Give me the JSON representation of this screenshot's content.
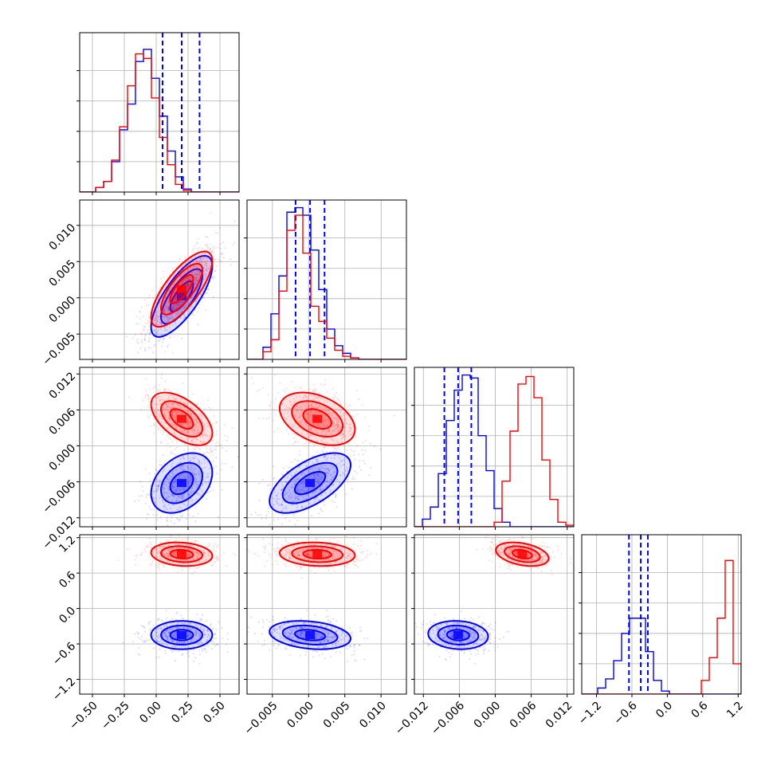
{
  "colors": {
    "blue": "#0000ff",
    "red": "#ff0000"
  },
  "chart_data": {
    "type": "corner",
    "grid": true,
    "legend": "none",
    "parameters": [
      {
        "ticks": [
          -0.5,
          -0.25,
          0.0,
          0.25,
          0.5
        ],
        "tick_labels": [
          "−0.50",
          "−0.25",
          "0.00",
          "0.25",
          "0.50"
        ],
        "range": [
          -0.6,
          0.65
        ]
      },
      {
        "ticks": [
          -0.005,
          0.0,
          0.005,
          0.01
        ],
        "tick_labels": [
          "−0.005",
          "0.000",
          "0.005",
          "0.010"
        ],
        "range": [
          -0.0085,
          0.0135
        ]
      },
      {
        "ticks": [
          -0.012,
          -0.006,
          0.0,
          0.006,
          0.012
        ],
        "tick_labels": [
          "−0.012",
          "−0.006",
          "0.000",
          "0.006",
          "0.012"
        ],
        "range": [
          -0.0135,
          0.0131
        ]
      },
      {
        "ticks": [
          -1.2,
          -0.6,
          0.0,
          0.6,
          1.2
        ],
        "tick_labels": [
          "−1.2",
          "−0.6",
          "0.0",
          "0.6",
          "1.2"
        ],
        "range": [
          -1.45,
          1.25
        ]
      }
    ],
    "series": [
      {
        "color": "blue",
        "means": [
          0.2,
          0.0002,
          -0.0062,
          -0.45
        ],
        "sds": [
          0.12,
          0.0028,
          0.0025,
          0.12
        ],
        "quantiles": [
          [
            0.05,
            0.2,
            0.34
          ],
          [
            -0.0018,
            0.0002,
            0.0022
          ],
          [
            -0.0085,
            -0.0062,
            -0.004
          ],
          [
            -0.65,
            -0.45,
            -0.33
          ]
        ],
        "correlations": [
          [
            0,
            1,
            0.75
          ],
          [
            0,
            2,
            0.35
          ],
          [
            1,
            2,
            0.6
          ],
          [
            0,
            3,
            0.0
          ],
          [
            1,
            3,
            -0.25
          ],
          [
            2,
            3,
            -0.1
          ]
        ],
        "histograms": [
          [
            0,
            0,
            0.03,
            0.07,
            0.2,
            0.41,
            0.58,
            0.86,
            0.94,
            0.75,
            0.5,
            0.27,
            0.1,
            0.02,
            0,
            0,
            0,
            0,
            0,
            0
          ],
          [
            0,
            0,
            0.08,
            0.3,
            0.55,
            0.97,
            1.0,
            0.95,
            0.72,
            0.46,
            0.2,
            0.09,
            0.04,
            0.01,
            0,
            0,
            0,
            0,
            0,
            0
          ],
          [
            0,
            0.05,
            0.13,
            0.35,
            0.7,
            0.9,
            1.0,
            0.98,
            0.6,
            0.37,
            0.12,
            0.03,
            0,
            0,
            0,
            0,
            0,
            0,
            0,
            0
          ],
          [
            0,
            0,
            0.04,
            0.1,
            0.22,
            0.4,
            0.5,
            0.5,
            0.28,
            0.09,
            0.02,
            0,
            0,
            0,
            0,
            0,
            0,
            0,
            0,
            0
          ]
        ]
      },
      {
        "color": "red",
        "means": [
          0.2,
          0.0012,
          0.0045,
          0.92
        ],
        "sds": [
          0.12,
          0.0026,
          0.0022,
          0.1
        ],
        "quantiles": [],
        "correlations": [
          [
            0,
            1,
            0.75
          ],
          [
            0,
            2,
            -0.55
          ],
          [
            1,
            2,
            -0.4
          ],
          [
            0,
            3,
            -0.15
          ],
          [
            1,
            3,
            -0.1
          ],
          [
            2,
            3,
            -0.35
          ]
        ],
        "histograms": [
          [
            0,
            0,
            0.03,
            0.07,
            0.21,
            0.43,
            0.7,
            0.91,
            0.88,
            0.62,
            0.36,
            0.18,
            0.05,
            0.01,
            0,
            0,
            0,
            0,
            0,
            0
          ],
          [
            0,
            0,
            0.05,
            0.13,
            0.45,
            0.85,
            0.95,
            0.7,
            0.35,
            0.25,
            0.14,
            0.06,
            0.02,
            0.01,
            0,
            0,
            0,
            0,
            0,
            0
          ],
          [
            0,
            0,
            0,
            0,
            0,
            0,
            0,
            0,
            0,
            0,
            0.03,
            0.3,
            0.63,
            0.94,
            0.99,
            0.85,
            0.44,
            0.18,
            0.03,
            0.01
          ],
          [
            0,
            0,
            0,
            0,
            0,
            0,
            0,
            0,
            0,
            0,
            0,
            0,
            0,
            0,
            0,
            0.09,
            0.24,
            0.5,
            0.88,
            0.2
          ]
        ]
      }
    ]
  }
}
